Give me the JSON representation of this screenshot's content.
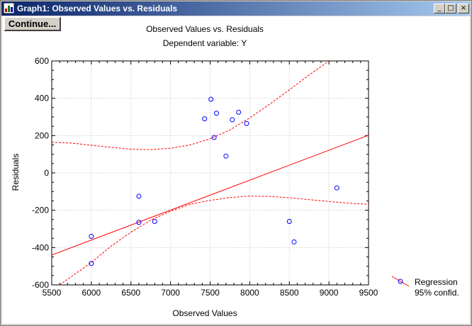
{
  "window": {
    "title": "Graph1: Observed Values vs. Residuals",
    "minimize_glyph": "_",
    "maximize_glyph": "□",
    "close_glyph": "×"
  },
  "toolbar": {
    "continue_label": "Continue..."
  },
  "colors": {
    "points": "#0000ff",
    "regression": "#ff0000",
    "title_bar": "#0a246a"
  },
  "chart_data": {
    "type": "scatter",
    "title": "Observed Values vs. Residuals",
    "subtitle": "Dependent variable: Y",
    "xlabel": "Observed Values",
    "ylabel": "Residuals",
    "xlim": [
      5500,
      9500
    ],
    "ylim": [
      -600,
      600
    ],
    "xticks": [
      5500,
      6000,
      6500,
      7000,
      7500,
      8000,
      8500,
      9000,
      9500
    ],
    "yticks": [
      600,
      400,
      200,
      0,
      -200,
      -400,
      -600
    ],
    "grid": true,
    "legend_position": "bottom-right",
    "legend": [
      "Regression",
      "95% confid."
    ],
    "points": [
      {
        "x": 6000,
        "y": -340
      },
      {
        "x": 6000,
        "y": -485
      },
      {
        "x": 6600,
        "y": -125
      },
      {
        "x": 6600,
        "y": -265
      },
      {
        "x": 6800,
        "y": -260
      },
      {
        "x": 7430,
        "y": 290
      },
      {
        "x": 7510,
        "y": 395
      },
      {
        "x": 7550,
        "y": 190
      },
      {
        "x": 7580,
        "y": 320
      },
      {
        "x": 7700,
        "y": 90
      },
      {
        "x": 7780,
        "y": 285
      },
      {
        "x": 7860,
        "y": 325
      },
      {
        "x": 7960,
        "y": 265
      },
      {
        "x": 8500,
        "y": -260
      },
      {
        "x": 8560,
        "y": -370
      },
      {
        "x": 9100,
        "y": -80
      }
    ],
    "regression": {
      "intercept": -1322.8,
      "slope": 0.1605
    },
    "confidence_upper": [
      {
        "x": 5500,
        "y": 165
      },
      {
        "x": 5750,
        "y": 160
      },
      {
        "x": 6000,
        "y": 148
      },
      {
        "x": 6250,
        "y": 137
      },
      {
        "x": 6500,
        "y": 127
      },
      {
        "x": 6750,
        "y": 125
      },
      {
        "x": 7000,
        "y": 132
      },
      {
        "x": 7250,
        "y": 150
      },
      {
        "x": 7500,
        "y": 183
      },
      {
        "x": 7750,
        "y": 230
      },
      {
        "x": 8000,
        "y": 295
      },
      {
        "x": 8250,
        "y": 368
      },
      {
        "x": 8500,
        "y": 445
      },
      {
        "x": 8750,
        "y": 525
      },
      {
        "x": 9000,
        "y": 600
      }
    ],
    "confidence_lower": [
      {
        "x": 5600,
        "y": -600
      },
      {
        "x": 6000,
        "y": -480
      },
      {
        "x": 6250,
        "y": -392
      },
      {
        "x": 6500,
        "y": -318
      },
      {
        "x": 6750,
        "y": -253
      },
      {
        "x": 7000,
        "y": -205
      },
      {
        "x": 7250,
        "y": -168
      },
      {
        "x": 7500,
        "y": -147
      },
      {
        "x": 7750,
        "y": -132
      },
      {
        "x": 8000,
        "y": -124
      },
      {
        "x": 8250,
        "y": -126
      },
      {
        "x": 8500,
        "y": -133
      },
      {
        "x": 8750,
        "y": -143
      },
      {
        "x": 9000,
        "y": -153
      },
      {
        "x": 9250,
        "y": -162
      },
      {
        "x": 9500,
        "y": -168
      }
    ]
  }
}
